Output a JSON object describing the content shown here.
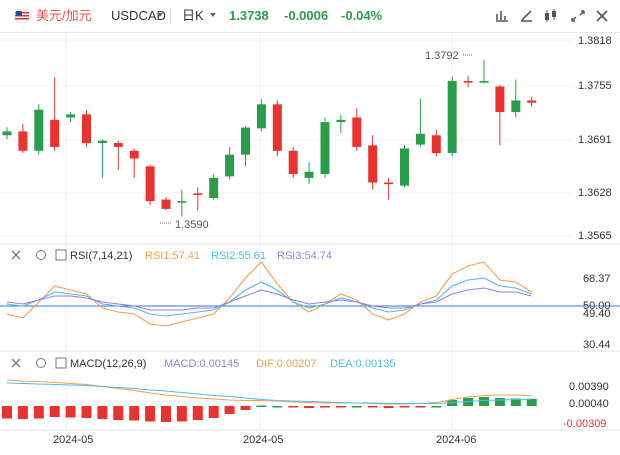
{
  "header": {
    "symbol_cn": "美元/加元",
    "symbol": "USDCAD",
    "period": "日K",
    "price": "1.3738",
    "change": "-0.0006",
    "change_pct": "-0.04%",
    "icons": [
      "us-flag-icon",
      "chevron-down-icon",
      "line-style-icon",
      "draw-icon",
      "indicator-icon",
      "fullscreen-icon",
      "close-icon"
    ]
  },
  "colors": {
    "up": "#2a9d4a",
    "down": "#e8332f",
    "rsi1": "#f5a04a",
    "rsi2": "#4dbde8",
    "rsi3": "#9b7fd6",
    "dif": "#f5a04a",
    "dea": "#4dbde8",
    "axis_text": "#333",
    "neg_axis": "#e8332f"
  },
  "chart_data": {
    "type": "candlestick",
    "price_axis": {
      "ticks": [
        "1.3818",
        "1.3755",
        "1.3691",
        "1.3628",
        "1.3565"
      ],
      "ylim": [
        1.3565,
        1.3818
      ]
    },
    "annotations": [
      {
        "label": "1.3792",
        "kind": "high"
      },
      {
        "label": "1.3590",
        "kind": "low"
      }
    ],
    "x_labels": [
      "2024-05",
      "2024-05",
      "2024-06"
    ],
    "candles": [
      [
        1.3695,
        1.37,
        1.369,
        1.3705
      ],
      [
        1.37,
        1.3675,
        1.3672,
        1.371
      ],
      [
        1.3675,
        1.3728,
        1.367,
        1.3735
      ],
      [
        1.3715,
        1.368,
        1.3675,
        1.377
      ],
      [
        1.3718,
        1.3722,
        1.3712,
        1.3725
      ],
      [
        1.3722,
        1.3685,
        1.368,
        1.3728
      ],
      [
        1.3685,
        1.3688,
        1.364,
        1.369
      ],
      [
        1.3685,
        1.368,
        1.365,
        1.3688
      ],
      [
        1.3675,
        1.3665,
        1.364,
        1.3678
      ],
      [
        1.3655,
        1.361,
        1.3605,
        1.3657
      ],
      [
        1.3612,
        1.36,
        1.3598,
        1.3615
      ],
      [
        1.3608,
        1.361,
        1.359,
        1.3625
      ],
      [
        1.362,
        1.3618,
        1.3598,
        1.3628
      ],
      [
        1.3614,
        1.364,
        1.3612,
        1.3645
      ],
      [
        1.3642,
        1.367,
        1.3638,
        1.368
      ],
      [
        1.367,
        1.3705,
        1.3655,
        1.3707
      ],
      [
        1.3704,
        1.3735,
        1.37,
        1.3742
      ],
      [
        1.3735,
        1.3675,
        1.3668,
        1.374
      ],
      [
        1.3675,
        1.3645,
        1.364,
        1.368
      ],
      [
        1.364,
        1.3648,
        1.3632,
        1.366
      ],
      [
        1.3645,
        1.3712,
        1.364,
        1.3718
      ],
      [
        1.3712,
        1.3715,
        1.3698,
        1.3722
      ],
      [
        1.3718,
        1.368,
        1.3675,
        1.373
      ],
      [
        1.3682,
        1.3634,
        1.3625,
        1.3695
      ],
      [
        1.3634,
        1.3632,
        1.3612,
        1.364
      ],
      [
        1.363,
        1.3678,
        1.3628,
        1.3683
      ],
      [
        1.3683,
        1.3697,
        1.368,
        1.3742
      ],
      [
        1.3695,
        1.3672,
        1.3668,
        1.3702
      ],
      [
        1.3672,
        1.3765,
        1.3668,
        1.3771
      ],
      [
        1.3765,
        1.3763,
        1.3757,
        1.3772
      ],
      [
        1.3763,
        1.3765,
        1.3762,
        1.3792
      ],
      [
        1.3758,
        1.3725,
        1.3682,
        1.376
      ],
      [
        1.3725,
        1.374,
        1.3718,
        1.3767
      ],
      [
        1.374,
        1.3737,
        1.3732,
        1.3745
      ]
    ],
    "rsi": {
      "label": "RSI(7,14,21)",
      "values_text": [
        "RSI1:57.41",
        "RSI2:55.61",
        "RSI3:54.74"
      ],
      "ticks": [
        "68.37",
        "50.00",
        "49.40",
        "30.44"
      ],
      "rsi1": [
        46,
        44,
        52,
        60,
        58,
        56,
        49,
        47,
        46,
        41,
        40,
        42,
        44,
        46,
        54,
        64,
        72,
        61,
        52,
        47,
        51,
        56,
        53,
        46,
        43,
        46,
        52,
        55,
        66,
        70,
        72,
        63,
        62,
        57
      ],
      "rsi2": [
        51,
        50,
        53,
        57,
        56,
        55,
        51,
        50,
        49,
        46,
        45,
        46,
        47,
        48,
        52,
        58,
        62,
        58,
        52,
        49,
        51,
        54,
        52,
        49,
        47,
        48,
        51,
        53,
        60,
        63,
        64,
        60,
        59,
        56
      ],
      "rsi3": [
        52,
        51,
        53,
        55,
        55,
        54,
        52,
        51,
        50,
        48,
        48,
        48,
        49,
        49,
        52,
        55,
        58,
        56,
        53,
        51,
        52,
        53,
        52,
        50,
        49,
        49,
        51,
        52,
        56,
        58,
        59,
        57,
        57,
        55
      ]
    },
    "macd": {
      "label": "MACD(12,26,9)",
      "values_text": [
        "MACD:0.00145",
        "DIF:0.00207",
        "DEA:0.00135"
      ],
      "ticks": [
        "0.00390",
        "0.00040",
        "-0.00309"
      ],
      "hist": [
        -0.0025,
        -0.0026,
        -0.0025,
        -0.0022,
        -0.0023,
        -0.0024,
        -0.0026,
        -0.0028,
        -0.0029,
        -0.0031,
        -0.0032,
        -0.0031,
        -0.0028,
        -0.0024,
        -0.0016,
        -0.0008,
        0.0001,
        0.0,
        -0.0003,
        -0.0004,
        -0.0003,
        -0.0001,
        0.0,
        -0.0002,
        -0.0004,
        -0.0003,
        -0.0001,
        0.0,
        0.0012,
        0.0016,
        0.0018,
        0.0016,
        0.0015,
        0.00145
      ],
      "dif": [
        0.0052,
        0.005,
        0.0049,
        0.0047,
        0.0045,
        0.0043,
        0.0039,
        0.0035,
        0.0031,
        0.0026,
        0.0022,
        0.0019,
        0.0016,
        0.0014,
        0.0012,
        0.0011,
        0.0011,
        0.001,
        0.0008,
        0.0007,
        0.0006,
        0.0006,
        0.0006,
        0.0005,
        0.0004,
        0.0004,
        0.0005,
        0.0007,
        0.0013,
        0.0018,
        0.0021,
        0.0022,
        0.0022,
        0.00207
      ],
      "dea": [
        0.0046,
        0.0045,
        0.0044,
        0.0043,
        0.0042,
        0.0041,
        0.0039,
        0.0037,
        0.0035,
        0.0032,
        0.003,
        0.0027,
        0.0024,
        0.0021,
        0.0019,
        0.0016,
        0.0013,
        0.0011,
        0.001,
        0.0009,
        0.0008,
        0.0007,
        0.0006,
        0.0006,
        0.0005,
        0.0005,
        0.0005,
        0.0005,
        0.0007,
        0.0009,
        0.0011,
        0.0012,
        0.0013,
        0.00135
      ]
    }
  }
}
